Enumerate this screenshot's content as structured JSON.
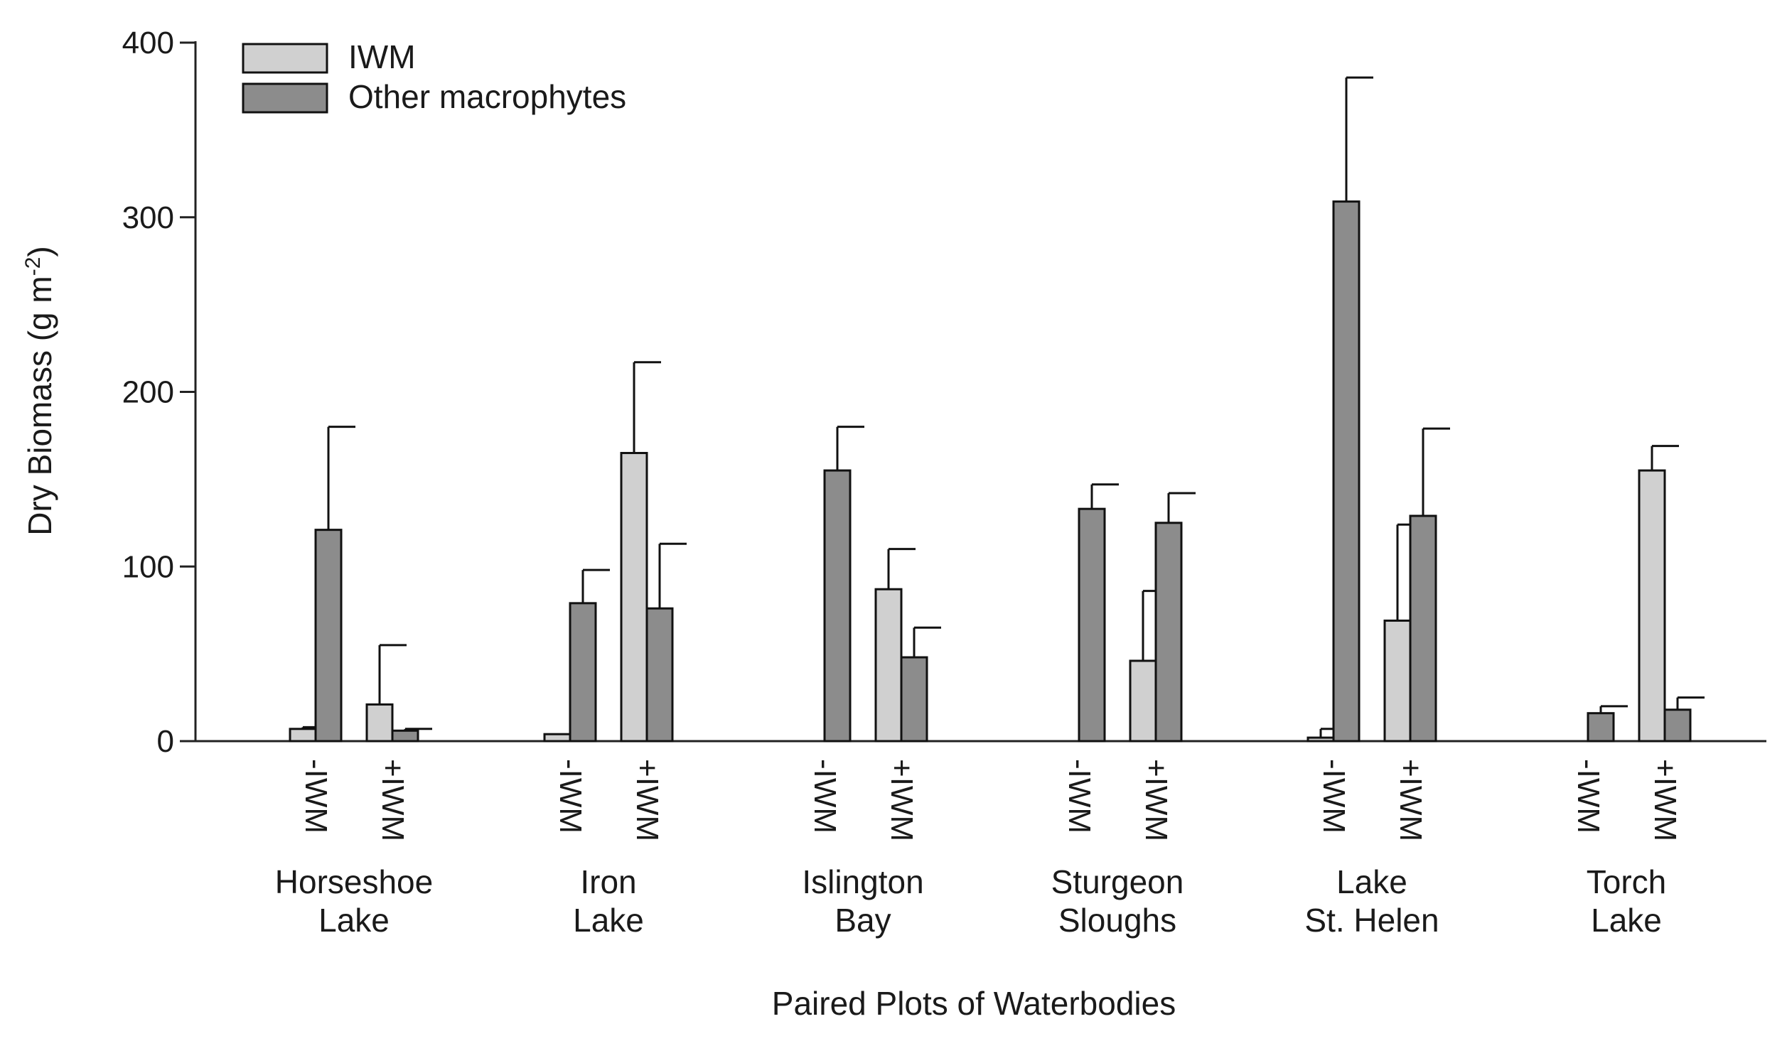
{
  "chart_data": {
    "type": "bar",
    "title": "",
    "xlabel": "Paired Plots of Waterbodies",
    "ylabel": "Dry Biomass (g m",
    "ylabel_sup": "-2",
    "ylabel_close": ")",
    "ylim": [
      0,
      400
    ],
    "yticks": [
      "0",
      "100",
      "200",
      "300",
      "400"
    ],
    "ytick_values": [
      0,
      100,
      200,
      300,
      400
    ],
    "legend": [
      {
        "name": "IWM",
        "color": "#d0d0d0"
      },
      {
        "name": "Other macrophytes",
        "color": "#8c8c8c"
      }
    ],
    "groups": [
      {
        "name_lines": [
          "Horseshoe",
          "Lake"
        ],
        "plots": [
          {
            "label": "-IWM",
            "iwm": 7,
            "iwm_err": 1,
            "other": 121,
            "other_err": 59
          },
          {
            "label": "+IWM",
            "iwm": 21,
            "iwm_err": 34,
            "other": 6,
            "other_err": 1
          }
        ]
      },
      {
        "name_lines": [
          "Iron",
          "Lake"
        ],
        "plots": [
          {
            "label": "-IWM",
            "iwm": 4,
            "iwm_err": 0,
            "other": 79,
            "other_err": 19
          },
          {
            "label": "+IWM",
            "iwm": 165,
            "iwm_err": 52,
            "other": 76,
            "other_err": 37
          }
        ]
      },
      {
        "name_lines": [
          "Islington",
          "Bay"
        ],
        "plots": [
          {
            "label": "-IWM",
            "iwm": 0,
            "iwm_err": 0,
            "other": 155,
            "other_err": 25
          },
          {
            "label": "+IWM",
            "iwm": 87,
            "iwm_err": 23,
            "other": 48,
            "other_err": 17
          }
        ]
      },
      {
        "name_lines": [
          "Sturgeon",
          "Sloughs"
        ],
        "plots": [
          {
            "label": "-IWM",
            "iwm": 0,
            "iwm_err": 0,
            "other": 133,
            "other_err": 14
          },
          {
            "label": "+IWM",
            "iwm": 46,
            "iwm_err": 40,
            "other": 125,
            "other_err": 17
          }
        ]
      },
      {
        "name_lines": [
          "Lake",
          "St. Helen"
        ],
        "plots": [
          {
            "label": "-IWM",
            "iwm": 2,
            "iwm_err": 5,
            "other": 309,
            "other_err": 71
          },
          {
            "label": "+IWM",
            "iwm": 69,
            "iwm_err": 55,
            "other": 129,
            "other_err": 50
          }
        ]
      },
      {
        "name_lines": [
          "Torch",
          "Lake"
        ],
        "plots": [
          {
            "label": "-IWM",
            "iwm": 0,
            "iwm_err": 0,
            "other": 16,
            "other_err": 4
          },
          {
            "label": "+IWM",
            "iwm": 155,
            "iwm_err": 14,
            "other": 18,
            "other_err": 7
          }
        ]
      }
    ]
  }
}
